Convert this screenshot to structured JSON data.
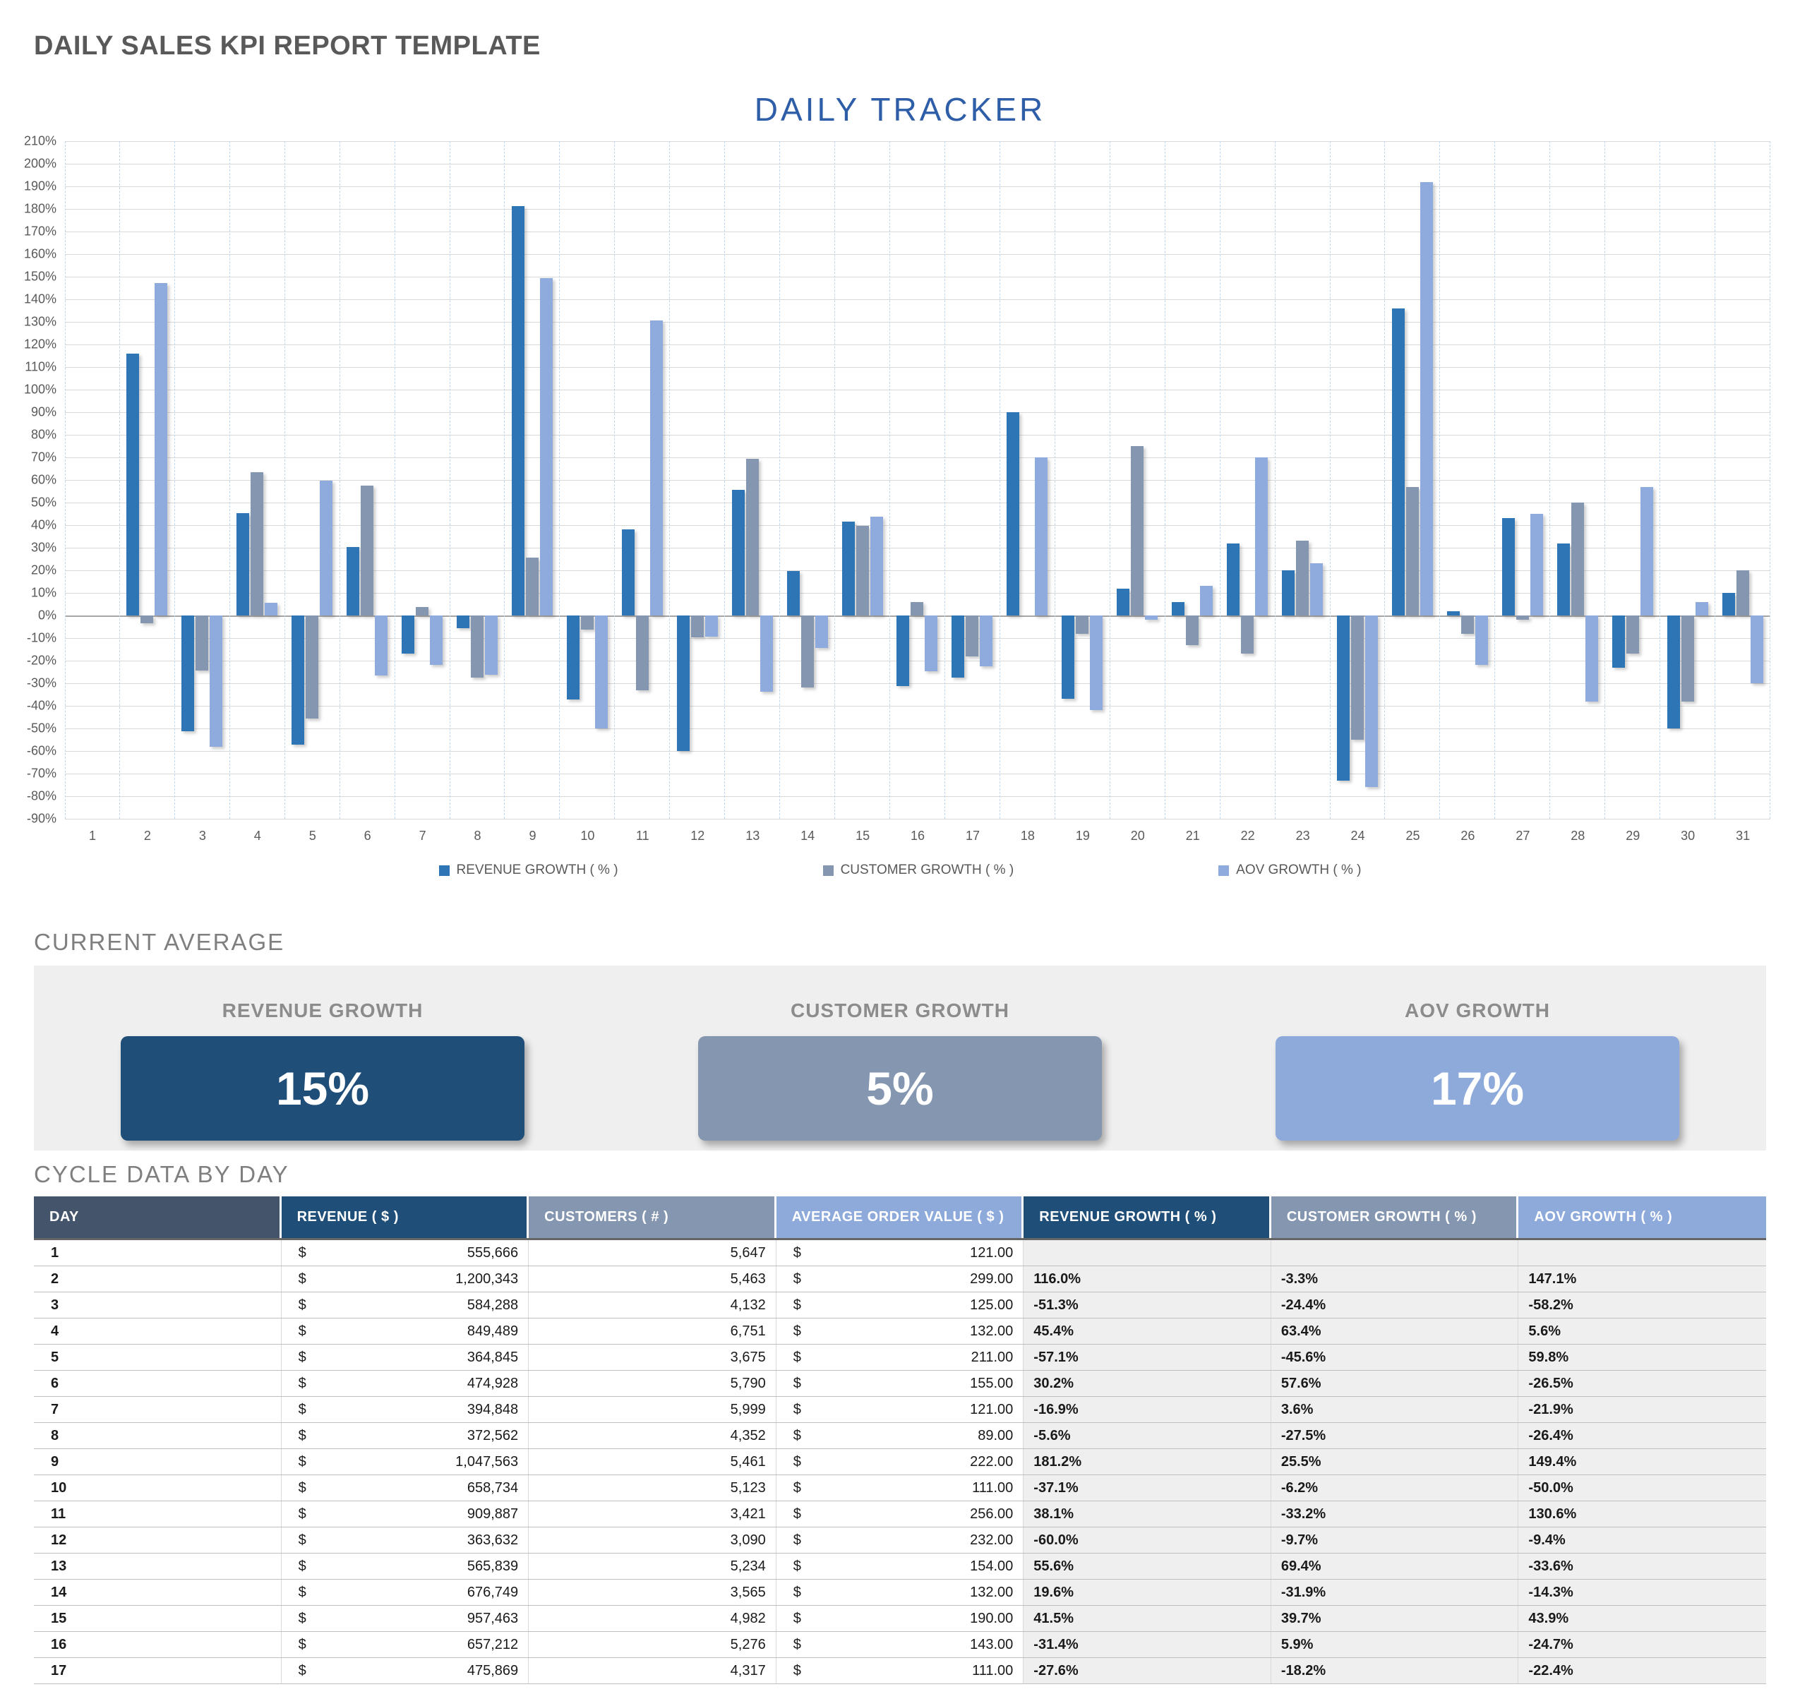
{
  "page_title": "DAILY SALES KPI REPORT TEMPLATE",
  "colors": {
    "page_title_text": "#595959",
    "chart_title_text": "#2F5EA8",
    "section_heading_text": "#7F7F7F",
    "panel_bg": "#EFEFEF",
    "grid_line": "#D9D9D9",
    "zero_line": "#A6A6A6",
    "grid_dash": "#BDD7EE",
    "axis_text": "#595959",
    "growth_cell_bg": "#EFEFEF",
    "row_border": "#BFBFBF",
    "col_border": "#D9D9D9"
  },
  "chart_data": {
    "type": "bar",
    "title": "DAILY TRACKER",
    "xlabel": "",
    "ylabel": "",
    "ylim": [
      -90,
      210
    ],
    "ytick_step": 10,
    "ytick_suffix": "%",
    "grid": true,
    "legend_position": "bottom",
    "categories": [
      1,
      2,
      3,
      4,
      5,
      6,
      7,
      8,
      9,
      10,
      11,
      12,
      13,
      14,
      15,
      16,
      17,
      18,
      19,
      20,
      21,
      22,
      23,
      24,
      25,
      26,
      27,
      28,
      29,
      30,
      31
    ],
    "series": [
      {
        "name": "REVENUE GROWTH  ( % )",
        "color": "#2E75B6",
        "values": [
          null,
          116.0,
          -51.3,
          45.4,
          -57.1,
          30.2,
          -16.9,
          -5.6,
          181.2,
          -37.1,
          38.1,
          -60.0,
          55.6,
          19.6,
          41.5,
          -31.4,
          -27.6,
          90,
          -37,
          12,
          6,
          32,
          20,
          -73,
          136,
          2,
          43,
          32,
          -23,
          -50,
          10
        ]
      },
      {
        "name": "CUSTOMER GROWTH  ( % )",
        "color": "#8496B0",
        "values": [
          null,
          -3.3,
          -24.4,
          63.4,
          -45.6,
          57.6,
          3.6,
          -27.5,
          25.5,
          -6.2,
          -33.2,
          -9.7,
          69.4,
          -31.9,
          39.7,
          5.9,
          -18.2,
          0,
          -8,
          75,
          -13,
          -17,
          33,
          -55,
          57,
          -8,
          -2,
          50,
          -17,
          -38,
          20
        ]
      },
      {
        "name": "AOV GROWTH  ( % )",
        "color": "#8FAADC",
        "values": [
          null,
          147.1,
          -58.2,
          5.6,
          59.8,
          -26.5,
          -21.9,
          -26.4,
          149.4,
          -50.0,
          130.6,
          -9.4,
          -33.6,
          -14.3,
          43.9,
          -24.7,
          -22.4,
          70,
          -42,
          -2,
          13,
          70,
          23,
          -76,
          192,
          -22,
          45,
          -38,
          57,
          6,
          -30
        ]
      }
    ]
  },
  "kpi": {
    "heading": "CURRENT AVERAGE",
    "cards": [
      {
        "label": "REVENUE GROWTH",
        "value": "15%",
        "color": "#1F4E79"
      },
      {
        "label": "CUSTOMER GROWTH",
        "value": "5%",
        "color": "#8496B0"
      },
      {
        "label": "AOV GROWTH",
        "value": "17%",
        "color": "#8EAADB"
      }
    ]
  },
  "table": {
    "heading": "CYCLE DATA BY DAY",
    "currency_symbol": "$",
    "columns": [
      {
        "label": "DAY",
        "color": "#44546A"
      },
      {
        "label": "REVENUE  ( $ )",
        "color": "#1F4E79"
      },
      {
        "label": "CUSTOMERS  ( # )",
        "color": "#8496B0"
      },
      {
        "label": "AVERAGE ORDER VALUE  ( $ )",
        "color": "#8EAADB"
      },
      {
        "label": "REVENUE GROWTH  ( % )",
        "color": "#1F4E79"
      },
      {
        "label": "CUSTOMER GROWTH  ( % )",
        "color": "#8496B0"
      },
      {
        "label": "AOV GROWTH  ( % )",
        "color": "#8EAADB"
      }
    ],
    "rows": [
      {
        "day": "1",
        "revenue": "555,666",
        "customers": "5,647",
        "aov": "121.00",
        "revenue_growth": "",
        "customer_growth": "",
        "aov_growth": ""
      },
      {
        "day": "2",
        "revenue": "1,200,343",
        "customers": "5,463",
        "aov": "299.00",
        "revenue_growth": "116.0%",
        "customer_growth": "-3.3%",
        "aov_growth": "147.1%"
      },
      {
        "day": "3",
        "revenue": "584,288",
        "customers": "4,132",
        "aov": "125.00",
        "revenue_growth": "-51.3%",
        "customer_growth": "-24.4%",
        "aov_growth": "-58.2%"
      },
      {
        "day": "4",
        "revenue": "849,489",
        "customers": "6,751",
        "aov": "132.00",
        "revenue_growth": "45.4%",
        "customer_growth": "63.4%",
        "aov_growth": "5.6%"
      },
      {
        "day": "5",
        "revenue": "364,845",
        "customers": "3,675",
        "aov": "211.00",
        "revenue_growth": "-57.1%",
        "customer_growth": "-45.6%",
        "aov_growth": "59.8%"
      },
      {
        "day": "6",
        "revenue": "474,928",
        "customers": "5,790",
        "aov": "155.00",
        "revenue_growth": "30.2%",
        "customer_growth": "57.6%",
        "aov_growth": "-26.5%"
      },
      {
        "day": "7",
        "revenue": "394,848",
        "customers": "5,999",
        "aov": "121.00",
        "revenue_growth": "-16.9%",
        "customer_growth": "3.6%",
        "aov_growth": "-21.9%"
      },
      {
        "day": "8",
        "revenue": "372,562",
        "customers": "4,352",
        "aov": "89.00",
        "revenue_growth": "-5.6%",
        "customer_growth": "-27.5%",
        "aov_growth": "-26.4%"
      },
      {
        "day": "9",
        "revenue": "1,047,563",
        "customers": "5,461",
        "aov": "222.00",
        "revenue_growth": "181.2%",
        "customer_growth": "25.5%",
        "aov_growth": "149.4%"
      },
      {
        "day": "10",
        "revenue": "658,734",
        "customers": "5,123",
        "aov": "111.00",
        "revenue_growth": "-37.1%",
        "customer_growth": "-6.2%",
        "aov_growth": "-50.0%"
      },
      {
        "day": "11",
        "revenue": "909,887",
        "customers": "3,421",
        "aov": "256.00",
        "revenue_growth": "38.1%",
        "customer_growth": "-33.2%",
        "aov_growth": "130.6%"
      },
      {
        "day": "12",
        "revenue": "363,632",
        "customers": "3,090",
        "aov": "232.00",
        "revenue_growth": "-60.0%",
        "customer_growth": "-9.7%",
        "aov_growth": "-9.4%"
      },
      {
        "day": "13",
        "revenue": "565,839",
        "customers": "5,234",
        "aov": "154.00",
        "revenue_growth": "55.6%",
        "customer_growth": "69.4%",
        "aov_growth": "-33.6%"
      },
      {
        "day": "14",
        "revenue": "676,749",
        "customers": "3,565",
        "aov": "132.00",
        "revenue_growth": "19.6%",
        "customer_growth": "-31.9%",
        "aov_growth": "-14.3%"
      },
      {
        "day": "15",
        "revenue": "957,463",
        "customers": "4,982",
        "aov": "190.00",
        "revenue_growth": "41.5%",
        "customer_growth": "39.7%",
        "aov_growth": "43.9%"
      },
      {
        "day": "16",
        "revenue": "657,212",
        "customers": "5,276",
        "aov": "143.00",
        "revenue_growth": "-31.4%",
        "customer_growth": "5.9%",
        "aov_growth": "-24.7%"
      },
      {
        "day": "17",
        "revenue": "475,869",
        "customers": "4,317",
        "aov": "111.00",
        "revenue_growth": "-27.6%",
        "customer_growth": "-18.2%",
        "aov_growth": "-22.4%"
      }
    ]
  }
}
